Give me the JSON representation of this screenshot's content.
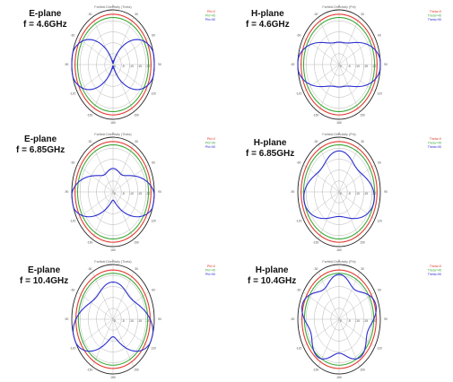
{
  "colors": {
    "red": "#e23a2e",
    "green": "#3faa3a",
    "blue": "#2a2fd0",
    "grid": "#b5b5b5",
    "frame": "#222222"
  },
  "chart_data": [
    {
      "type": "line",
      "polar": true,
      "label_lines": [
        "E-plane",
        "f = 4.6GHz"
      ],
      "title": "Farfield Directivity (Theta)",
      "legend": [
        "Phi=0",
        "Phi=45",
        "Phi=90"
      ],
      "r_ticks": [
        "0",
        "-5",
        "-10",
        "-15",
        "-20"
      ],
      "angle_ticks": [
        "0",
        "30",
        "60",
        "90",
        "120",
        "150",
        "180",
        "-150",
        "-120",
        "-90",
        "-60",
        "-30"
      ],
      "series": [
        {
          "color": "red",
          "shape": [
            0.92,
            0,
            0,
            0,
            0,
            0
          ]
        },
        {
          "color": "green",
          "shape": [
            0.86,
            0,
            0,
            0,
            0,
            0
          ]
        },
        {
          "color": "blue",
          "shape": [
            0.55,
            -0.55,
            -0.07,
            0,
            0,
            0
          ]
        }
      ]
    },
    {
      "type": "line",
      "polar": true,
      "label_lines": [
        "H-plane",
        "f = 4.6GHz"
      ],
      "title": "Farfield Directivity (Phi)",
      "legend": [
        "Theta=0",
        "Theta=45",
        "Theta=90"
      ],
      "r_ticks": [
        "0",
        "-5",
        "-10",
        "-15",
        "-20"
      ],
      "angle_ticks": [
        "0",
        "30",
        "60",
        "90",
        "120",
        "150",
        "180",
        "-150",
        "-120",
        "-90",
        "-60",
        "-30"
      ],
      "series": [
        {
          "color": "red",
          "shape": [
            0.92,
            0,
            0,
            0,
            0,
            0
          ]
        },
        {
          "color": "green",
          "shape": [
            0.86,
            0,
            0,
            0,
            0,
            0
          ]
        },
        {
          "color": "blue",
          "shape": [
            0.64,
            -0.3,
            0.07,
            0,
            0,
            0
          ]
        }
      ]
    },
    {
      "type": "line",
      "polar": true,
      "label_lines": [
        "E-plane",
        "f = 6.85GHz"
      ],
      "title": "Farfield Directivity (Theta)",
      "legend": [
        "Phi=0",
        "Phi=45",
        "Phi=90"
      ],
      "r_ticks": [
        "0",
        "-5",
        "-10",
        "-15",
        "-20"
      ],
      "angle_ticks": [
        "0",
        "30",
        "60",
        "90",
        "120",
        "150",
        "180",
        "-150",
        "-120",
        "-90",
        "-60",
        "-30"
      ],
      "series": [
        {
          "color": "red",
          "shape": [
            0.92,
            0,
            0,
            0,
            0,
            0
          ]
        },
        {
          "color": "green",
          "shape": [
            0.86,
            0,
            0,
            0,
            0,
            0
          ]
        },
        {
          "color": "blue",
          "shape": [
            0.58,
            -0.35,
            0.06,
            0,
            0.14,
            0
          ]
        }
      ]
    },
    {
      "type": "line",
      "polar": true,
      "label_lines": [
        "H-plane",
        "f = 6.85GHz"
      ],
      "title": "Farfield Directivity (Phi)",
      "legend": [
        "Theta=0",
        "Theta=45",
        "Theta=90"
      ],
      "r_ticks": [
        "0",
        "-5",
        "-10",
        "-15",
        "-20"
      ],
      "angle_ticks": [
        "0",
        "30",
        "60",
        "90",
        "120",
        "150",
        "180",
        "-150",
        "-120",
        "-90",
        "-60",
        "-30"
      ],
      "series": [
        {
          "color": "red",
          "shape": [
            0.92,
            0,
            0,
            0,
            0,
            0
          ]
        },
        {
          "color": "green",
          "shape": [
            0.86,
            0,
            0,
            0,
            0,
            0
          ]
        },
        {
          "color": "blue",
          "shape": [
            0.68,
            -0.12,
            0.04,
            0.05,
            0.1,
            0
          ]
        }
      ]
    },
    {
      "type": "line",
      "polar": true,
      "label_lines": [
        "E-plane",
        "f = 10.4GHz"
      ],
      "title": "Farfield Directivity (Theta)",
      "legend": [
        "Phi=0",
        "Phi=45",
        "Phi=90"
      ],
      "r_ticks": [
        "0",
        "-5",
        "-10",
        "-15",
        "-20"
      ],
      "angle_ticks": [
        "0",
        "30",
        "60",
        "90",
        "120",
        "150",
        "180",
        "-150",
        "-120",
        "-90",
        "-60",
        "-30"
      ],
      "series": [
        {
          "color": "red",
          "shape": [
            0.9,
            0,
            0,
            0,
            0,
            0
          ]
        },
        {
          "color": "green",
          "shape": [
            0.84,
            0,
            0,
            0,
            0,
            0
          ]
        },
        {
          "color": "blue",
          "shape": [
            0.7,
            -0.2,
            0,
            0,
            0.18,
            0
          ]
        }
      ]
    },
    {
      "type": "line",
      "polar": true,
      "label_lines": [
        "H-plane",
        "f = 10.4GHz"
      ],
      "title": "Farfield Directivity (Phi)",
      "legend": [
        "Theta=0",
        "Theta=45",
        "Theta=90"
      ],
      "r_ticks": [
        "0",
        "-5",
        "-10",
        "-15",
        "-20"
      ],
      "angle_ticks": [
        "0",
        "30",
        "60",
        "90",
        "120",
        "150",
        "180",
        "-150",
        "-120",
        "-90",
        "-60",
        "-30"
      ],
      "series": [
        {
          "color": "red",
          "shape": [
            0.9,
            0,
            0,
            0,
            0,
            0
          ]
        },
        {
          "color": "green",
          "shape": [
            0.84,
            0,
            0,
            0,
            0,
            0
          ]
        },
        {
          "color": "blue",
          "shape": [
            0.78,
            -0.06,
            0,
            0,
            0,
            0.1
          ]
        }
      ]
    }
  ]
}
